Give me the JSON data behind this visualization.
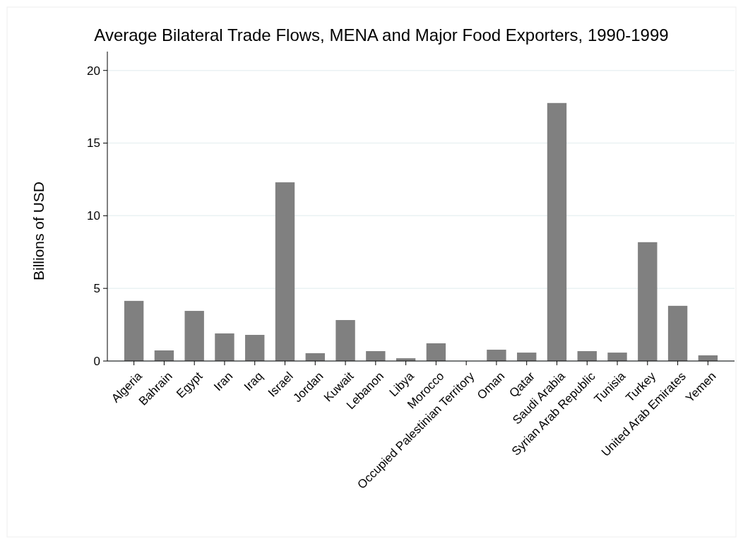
{
  "chart_data": {
    "type": "bar",
    "title": "Average Bilateral Trade Flows, MENA and Major Food Exporters, 1990-1999",
    "ylabel": "Billions of USD",
    "categories": [
      "Algeria",
      "Bahrain",
      "Egypt",
      "Iran",
      "Iraq",
      "Israel",
      "Jordan",
      "Kuwait",
      "Lebanon",
      "Libya",
      "Morocco",
      "Occupied Palestinian Territory",
      "Oman",
      "Qatar",
      "Saudi Arabia",
      "Syrian Arab Republic",
      "Tunisia",
      "Turkey",
      "United Arab Emirates",
      "Yemen"
    ],
    "values": [
      4.14,
      0.73,
      3.45,
      1.9,
      1.8,
      12.3,
      0.54,
      2.82,
      0.68,
      0.19,
      1.22,
      0,
      0.78,
      0.58,
      17.76,
      0.68,
      0.58,
      8.18,
      3.8,
      0.39
    ],
    "color": "#808080",
    "ylim": [
      0,
      21.3
    ],
    "yticks": [
      0,
      5,
      10,
      15,
      20
    ],
    "grid": "y"
  }
}
